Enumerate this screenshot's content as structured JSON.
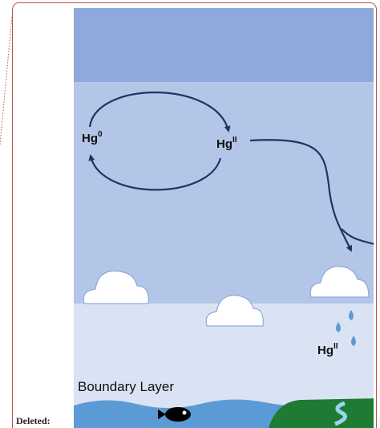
{
  "labels": {
    "hg0": {
      "base": "Hg",
      "sup": "0"
    },
    "hg2_air": {
      "base": "Hg",
      "sup": "II"
    },
    "hg2_rain": {
      "base": "Hg",
      "sup": "II"
    },
    "boundary_layer": "Boundary Layer"
  },
  "revision": {
    "deleted": "Deleted:"
  }
}
